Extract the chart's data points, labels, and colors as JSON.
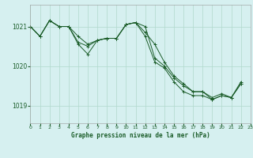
{
  "title": "Graphe pression niveau de la mer (hPa)",
  "bg_color": "#d6f0f0",
  "grid_color": "#b0d8cc",
  "line_color": "#1a5c28",
  "tick_color": "#1a5c28",
  "series": [
    [
      1021.0,
      1020.75,
      1021.15,
      1021.0,
      1021.0,
      1020.75,
      1020.55,
      1020.65,
      1020.7,
      1020.7,
      1021.05,
      1021.1,
      1020.85,
      1020.55,
      1020.1,
      1019.75,
      1019.55,
      1019.35,
      1019.35,
      1019.2,
      1019.3,
      1019.2,
      1019.55
    ],
    [
      1021.0,
      1020.75,
      1021.15,
      1021.0,
      1021.0,
      1020.55,
      1020.3,
      1020.65,
      1020.7,
      1020.7,
      1021.05,
      1021.1,
      1020.75,
      1020.1,
      1019.95,
      1019.6,
      1019.35,
      1019.25,
      1019.25,
      1019.15,
      1019.25,
      1019.2,
      1019.55
    ],
    [
      1021.0,
      1020.75,
      1021.15,
      1021.0,
      1021.0,
      1020.6,
      1020.5,
      1020.65,
      1020.7,
      1020.7,
      1021.05,
      1021.1,
      1021.0,
      1020.2,
      1020.0,
      1019.7,
      1019.5,
      1019.35,
      1019.35,
      1019.15,
      1019.25,
      1019.2,
      1019.6
    ]
  ],
  "ylim": [
    1018.55,
    1021.55
  ],
  "yticks": [
    1019,
    1020,
    1021
  ],
  "xlim": [
    0,
    22
  ],
  "xticks": [
    0,
    1,
    2,
    3,
    4,
    5,
    6,
    7,
    8,
    9,
    10,
    11,
    12,
    13,
    14,
    15,
    16,
    17,
    18,
    19,
    20,
    21,
    22,
    23
  ]
}
